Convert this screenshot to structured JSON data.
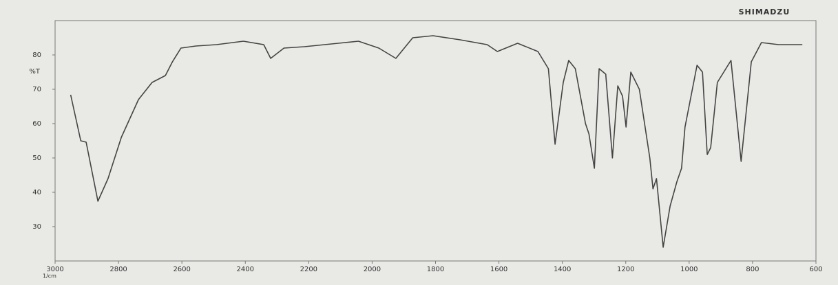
{
  "chart_data": {
    "type": "line",
    "brand": "SHIMADZU",
    "y_label": "%T",
    "x_label": "1/cm",
    "x": [
      2951,
      2919,
      2902,
      2865,
      2833,
      2791,
      2737,
      2694,
      2673,
      2652,
      2630,
      2603,
      2556,
      2491,
      2406,
      2342,
      2320,
      2278,
      2214,
      2150,
      2107,
      2043,
      1979,
      1925,
      1872,
      1808,
      1722,
      1637,
      1605,
      1541,
      1477,
      1444,
      1423,
      1397,
      1380,
      1359,
      1327,
      1316,
      1299,
      1284,
      1263,
      1242,
      1225,
      1210,
      1199,
      1184,
      1157,
      1124,
      1114,
      1103,
      1082,
      1060,
      1039,
      1024,
      1013,
      975,
      958,
      943,
      932,
      911,
      868,
      836,
      804,
      772,
      718,
      643
    ],
    "series": [
      {
        "name": "%T",
        "color": "#444444",
        "values": [
          68.4,
          55,
          54.6,
          37.4,
          44,
          56,
          67,
          72,
          73,
          74,
          78,
          82,
          82.6,
          83,
          84,
          83,
          79,
          82,
          82.4,
          83,
          83.4,
          84,
          82,
          79,
          85,
          85.6,
          84.4,
          83,
          81,
          83.4,
          81,
          76,
          54,
          72,
          78.4,
          76,
          60,
          57,
          47,
          76,
          74.4,
          50,
          71,
          68,
          59,
          75,
          70,
          50,
          41,
          44,
          24,
          36,
          43,
          47,
          59,
          77,
          75,
          51,
          53,
          72,
          78.4,
          49,
          78,
          83.6,
          83,
          83
        ]
      }
    ],
    "xlim": [
      3000,
      600
    ],
    "xticks": [
      3000,
      2800,
      2600,
      2400,
      2200,
      2000,
      1800,
      1600,
      1400,
      1200,
      1000,
      800,
      600
    ],
    "ylim": [
      20,
      90
    ],
    "yticks": [
      30,
      40,
      50,
      60,
      70,
      80
    ]
  }
}
